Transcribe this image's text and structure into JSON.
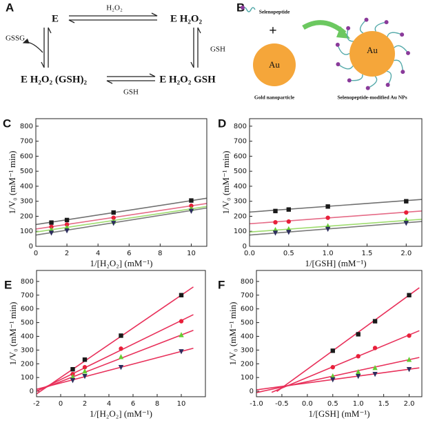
{
  "panel_labels": [
    "A",
    "B",
    "C",
    "D",
    "E",
    "F"
  ],
  "diagram_a": {
    "species": [
      "E",
      "E H₂O₂",
      "E H₂O₂ (GSH)₂",
      "E H₂O₂ GSH"
    ],
    "arrow_labels": [
      "H₂O₂",
      "GSH",
      "GSH",
      "GSSG"
    ]
  },
  "diagram_b": {
    "peptide_label": "Selenopeptide",
    "plus": "+",
    "core_label": [
      "Au",
      "Au"
    ],
    "captions": [
      "Gold nanoparticle",
      "Selenopeptide-modified Au NPs"
    ]
  },
  "chart_data": [
    {
      "type": "scatter",
      "x_label": "1/[H₂O₂] (mM⁻¹)",
      "y_label": "1/V₀ (mM⁻¹ min)",
      "xlim": [
        0,
        11
      ],
      "ylim": [
        0,
        850
      ],
      "xticks": [
        0,
        2,
        4,
        6,
        8,
        10
      ],
      "yticks": [
        0,
        100,
        200,
        300,
        400,
        500,
        600,
        700,
        800
      ],
      "x": [
        1,
        2,
        5,
        10
      ],
      "series": [
        {
          "color": "#1a1a1a",
          "marker": "square",
          "values": [
            158,
            175,
            225,
            305
          ],
          "line_color": "#707070",
          "fit_x": [
            0,
            11
          ],
          "fit_values": [
            145,
            320
          ]
        },
        {
          "color": "#e8203a",
          "marker": "circle",
          "values": [
            130,
            145,
            190,
            270
          ],
          "line_color": "#e56a86",
          "fit_x": [
            0,
            11
          ],
          "fit_values": [
            115,
            285
          ]
        },
        {
          "color": "#66cc33",
          "marker": "triangle-up",
          "values": [
            110,
            125,
            165,
            250
          ],
          "line_color": "#9edc6e",
          "fit_x": [
            0,
            11
          ],
          "fit_values": [
            95,
            265
          ]
        },
        {
          "color": "#2e2e5e",
          "marker": "triangle-down",
          "values": [
            90,
            105,
            155,
            235
          ],
          "line_color": "#7a7a7a",
          "fit_x": [
            0,
            11
          ],
          "fit_values": [
            75,
            255
          ]
        }
      ]
    },
    {
      "type": "scatter",
      "x_label": "1/[GSH] (mM⁻¹)",
      "y_label": "1/V₀ (mM⁻¹ min)",
      "xlim": [
        0,
        2.2
      ],
      "ylim": [
        0,
        850
      ],
      "xticks": [
        {
          "value": 0,
          "label": "0.0"
        },
        0.5,
        {
          "value": 1,
          "label": "1.0"
        },
        1.5,
        {
          "value": 2,
          "label": "2.0"
        }
      ],
      "yticks": [
        0,
        100,
        200,
        300,
        400,
        500,
        600,
        700,
        800
      ],
      "x": [
        0.33,
        0.5,
        1,
        2
      ],
      "series": [
        {
          "color": "#1a1a1a",
          "marker": "square",
          "values": [
            235,
            245,
            265,
            300
          ],
          "line_color": "#707070",
          "fit_x": [
            0,
            2.2
          ],
          "fit_values": [
            228,
            312
          ]
        },
        {
          "color": "#e8203a",
          "marker": "circle",
          "values": [
            160,
            165,
            190,
            225
          ],
          "line_color": "#e56a86",
          "fit_x": [
            0,
            2.2
          ],
          "fit_values": [
            150,
            235
          ]
        },
        {
          "color": "#66cc33",
          "marker": "triangle-up",
          "values": [
            110,
            115,
            135,
            175
          ],
          "line_color": "#9edc6e",
          "fit_x": [
            0,
            2.2
          ],
          "fit_values": [
            95,
            180
          ]
        },
        {
          "color": "#2e2e5e",
          "marker": "triangle-down",
          "values": [
            90,
            95,
            115,
            155
          ],
          "line_color": "#7a7a7a",
          "fit_x": [
            0,
            2.2
          ],
          "fit_values": [
            75,
            165
          ]
        }
      ]
    },
    {
      "type": "scatter",
      "x_label": "1/[H₂O₂] (mM⁻¹)",
      "y_label": "1/V₀ (mM⁻¹ min)",
      "xlim": [
        -2,
        12
      ],
      "ylim": [
        -40,
        880
      ],
      "xticks": [
        -2,
        0,
        2,
        4,
        6,
        8,
        10
      ],
      "yticks": [
        0,
        100,
        200,
        300,
        400,
        500,
        600,
        700,
        800
      ],
      "x": [
        1,
        2,
        5,
        10
      ],
      "series": [
        {
          "color": "#1a1a1a",
          "marker": "square",
          "values": [
            160,
            230,
            405,
            700
          ],
          "line_color": "#e8305a",
          "fit_x": [
            -2,
            11
          ],
          "fit_values": [
            -20,
            760
          ]
        },
        {
          "color": "#e8203a",
          "marker": "circle",
          "values": [
            125,
            175,
            310,
            510
          ],
          "line_color": "#e8305a",
          "fit_x": [
            -2,
            11
          ],
          "fit_values": [
            -1,
            558
          ]
        },
        {
          "color": "#66cc33",
          "marker": "triangle-up",
          "values": [
            105,
            145,
            250,
            410
          ],
          "line_color": "#e8305a",
          "fit_x": [
            -2,
            11
          ],
          "fit_values": [
            2,
            444
          ]
        },
        {
          "color": "#2e2e5e",
          "marker": "triangle-down",
          "values": [
            80,
            110,
            175,
            290
          ],
          "line_color": "#e8305a",
          "fit_x": [
            -2,
            11
          ],
          "fit_values": [
            14,
            313
          ]
        }
      ]
    },
    {
      "type": "scatter",
      "x_label": "1/[GSH] (mM⁻¹)",
      "y_label": "1/V₀ (mM⁻¹ min)",
      "xlim": [
        -1,
        2.25
      ],
      "ylim": [
        -40,
        880
      ],
      "xticks": [
        {
          "value": -1,
          "label": "-1.0"
        },
        -0.5,
        {
          "value": 0,
          "label": "0.0"
        },
        0.5,
        {
          "value": 1,
          "label": "1.0"
        },
        1.5,
        {
          "value": 2,
          "label": "2.0"
        }
      ],
      "yticks": [
        0,
        100,
        200,
        300,
        400,
        500,
        600,
        700,
        800
      ],
      "x": [
        0.5,
        1,
        1.33,
        2
      ],
      "series": [
        {
          "color": "#1a1a1a",
          "marker": "square",
          "values": [
            295,
            415,
            510,
            700
          ],
          "line_color": "#e8305a",
          "fit_x": [
            -0.6,
            2.2
          ],
          "fit_values": [
            -2,
            754
          ]
        },
        {
          "color": "#e8203a",
          "marker": "circle",
          "values": [
            175,
            255,
            315,
            405
          ],
          "line_color": "#e8305a",
          "fit_x": [
            -0.7,
            2.2
          ],
          "fit_values": [
            -8,
            441
          ]
        },
        {
          "color": "#66cc33",
          "marker": "triangle-up",
          "values": [
            110,
            140,
            170,
            230
          ],
          "line_color": "#e8305a",
          "fit_x": [
            -1,
            2.2
          ],
          "fit_values": [
            -10,
            246
          ]
        },
        {
          "color": "#2e2e5e",
          "marker": "triangle-down",
          "values": [
            85,
            110,
            125,
            160
          ],
          "line_color": "#e8305a",
          "fit_x": [
            -1,
            2.2
          ],
          "fit_values": [
            10,
            170
          ]
        }
      ]
    }
  ]
}
